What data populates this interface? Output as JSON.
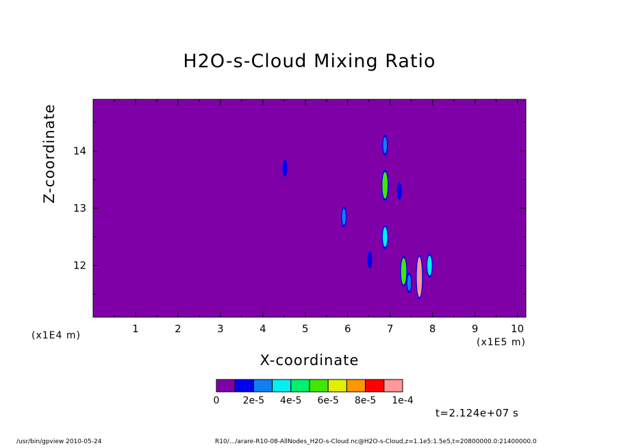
{
  "chart_data": {
    "type": "heatmap",
    "title": "H2O-s-Cloud Mixing Ratio",
    "xlabel": "X-coordinate",
    "ylabel": "Z-coordinate",
    "x_unit_label": "(x1E5 m)",
    "y_unit_label": "(x1E4 m)",
    "xlim": [
      0,
      10.2
    ],
    "ylim": [
      11.1,
      14.9
    ],
    "x_ticks": [
      1,
      2,
      3,
      4,
      5,
      6,
      7,
      8,
      9,
      10
    ],
    "y_ticks": [
      12,
      13,
      14
    ],
    "background_value": 0,
    "colorbar": {
      "colors": [
        "#8000a8",
        "#0000ee",
        "#1080f0",
        "#00f0f0",
        "#00f070",
        "#40e800",
        "#e0f000",
        "#ff9800",
        "#ff0000",
        "#ff9898"
      ],
      "tick_labels": [
        "0",
        "2e-5",
        "4e-5",
        "6e-5",
        "8e-5",
        "1e-4"
      ]
    },
    "features": [
      {
        "x": 4.52,
        "z": 13.7,
        "value": 1e-05
      },
      {
        "x": 5.91,
        "z": 12.85,
        "value": 2e-05
      },
      {
        "x": 6.88,
        "z": 14.1,
        "value": 2e-05
      },
      {
        "x": 6.88,
        "z": 13.4,
        "value": 5e-05
      },
      {
        "x": 6.88,
        "z": 12.5,
        "value": 3e-05
      },
      {
        "x": 6.52,
        "z": 12.1,
        "value": 1e-05
      },
      {
        "x": 7.22,
        "z": 13.3,
        "value": 1e-05
      },
      {
        "x": 7.32,
        "z": 11.9,
        "value": 5e-05
      },
      {
        "x": 7.45,
        "z": 11.7,
        "value": 2e-05
      },
      {
        "x": 7.69,
        "z": 11.8,
        "value": 9e-05
      },
      {
        "x": 7.93,
        "z": 12.0,
        "value": 3e-05
      }
    ]
  },
  "time_label": "t=2.124e+07 s",
  "footer": {
    "left": "/usr/bin/gpview  2010-05-24",
    "right": "R10/.../arare-R10-08-AllNodes_H2O-s-Cloud.nc@H2O-s-Cloud,z=1.1e5:1.5e5,t=20800000.0:21400000.0"
  }
}
